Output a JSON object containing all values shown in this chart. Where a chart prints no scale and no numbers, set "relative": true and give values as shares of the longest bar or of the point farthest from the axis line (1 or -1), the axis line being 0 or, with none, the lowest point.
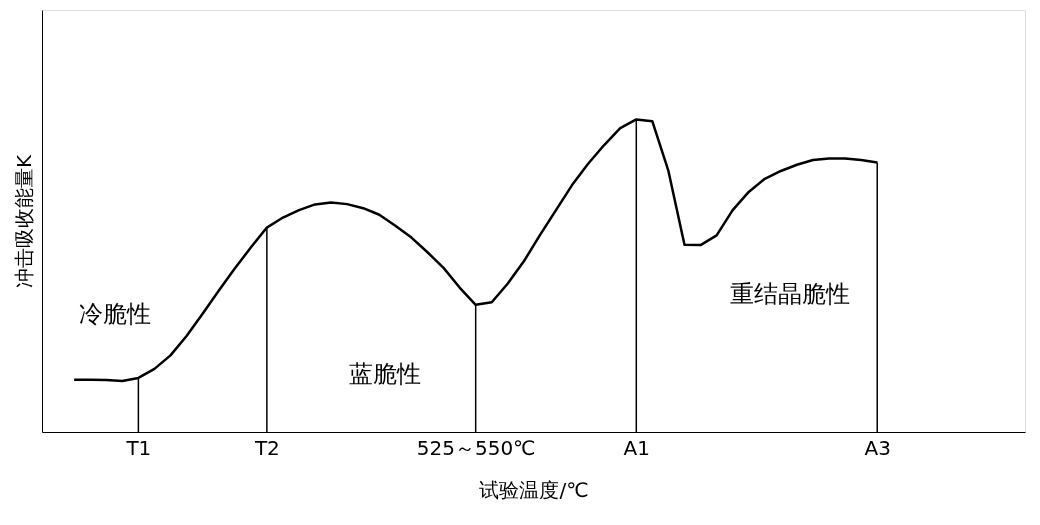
{
  "chart_data": {
    "type": "line",
    "relative": true,
    "xlabel": "试验温度/℃",
    "ylabel": "冲击吸收能量K",
    "categories": [
      null,
      null,
      null,
      null,
      "T1",
      null,
      null,
      null,
      null,
      null,
      null,
      null,
      "T2",
      null,
      null,
      null,
      null,
      null,
      null,
      null,
      null,
      null,
      null,
      null,
      null,
      "525～550℃",
      null,
      null,
      null,
      null,
      null,
      null,
      null,
      null,
      null,
      "A1",
      null,
      null,
      null,
      null,
      null,
      null,
      null,
      null,
      null,
      null,
      null,
      null,
      null,
      null,
      "A3"
    ],
    "series": [
      {
        "color": "#000000",
        "values": [
          0.167,
          0.167,
          0.166,
          0.163,
          0.173,
          0.202,
          0.245,
          0.307,
          0.378,
          0.452,
          0.523,
          0.59,
          0.654,
          0.686,
          0.71,
          0.728,
          0.734,
          0.729,
          0.716,
          0.695,
          0.66,
          0.622,
          0.575,
          0.525,
          0.462,
          0.407,
          0.415,
          0.475,
          0.546,
          0.63,
          0.71,
          0.79,
          0.858,
          0.918,
          0.972,
          1.0,
          0.994,
          0.835,
          0.599,
          0.598,
          0.629,
          0.71,
          0.768,
          0.81,
          0.835,
          0.855,
          0.87,
          0.875,
          0.875,
          0.87,
          0.862
        ]
      }
    ],
    "ref_lines": [
      {
        "axis": "x",
        "value": "T1",
        "label": null
      },
      {
        "axis": "x",
        "value": "T2",
        "label": null
      },
      {
        "axis": "x",
        "value": "525～550℃",
        "label": null
      },
      {
        "axis": "x",
        "value": "A1",
        "label": null
      },
      {
        "axis": "x",
        "value": "A3",
        "label": null
      }
    ],
    "annotations": [
      "冷脆性",
      "蓝脆性",
      "重结晶脆性"
    ],
    "grid": false,
    "marker": "none",
    "line_style": "solid"
  }
}
